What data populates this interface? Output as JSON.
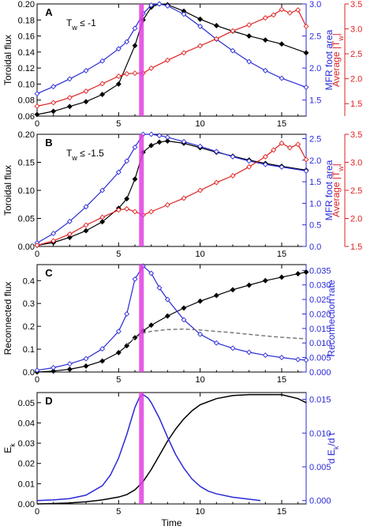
{
  "colors": {
    "black": "#000000",
    "blue": "#2a2ad8",
    "red": "#e02020",
    "magenta": "#e040e0",
    "gray": "#7a7a7a"
  },
  "time_marker": 6.4,
  "chart_data": [
    {
      "type": "line",
      "panel_label": "A",
      "annotation": "T",
      "annotation_sub": "w",
      "annotation_rest": " ≤ -1",
      "xlabel": "",
      "ylabel": "Toroidal flux",
      "ylabel_right": "MFR foot area",
      "ylabel_right2": "Average |T",
      "ylabel_right2_sub": "w",
      "ylabel_right2_end": "|",
      "xlim": [
        0,
        16.5
      ],
      "ylim": [
        0.06,
        0.2
      ],
      "ylim_right": [
        1.25,
        3.0
      ],
      "ylim_right2": [
        1.25,
        3.5
      ],
      "xticks": [
        "0",
        "5",
        "10",
        "15"
      ],
      "yticks": [
        "0.06",
        "0.08",
        "0.10",
        "0.12",
        "0.14",
        "0.16",
        "0.18",
        "0.20"
      ],
      "yticks_right": [
        "1.5",
        "2.0",
        "2.5",
        "3.0"
      ],
      "yticks_right2": [
        "1.5",
        "2.0",
        "2.5",
        "3.0",
        "3.5"
      ],
      "series": [
        {
          "axis": "left",
          "color": "black",
          "marker": "diamond-filled",
          "x": [
            0,
            1,
            2,
            3,
            4,
            5,
            6,
            6.5,
            7,
            7.5,
            8,
            9,
            10,
            11,
            12,
            13,
            14,
            15,
            16.5
          ],
          "y": [
            0.062,
            0.066,
            0.072,
            0.078,
            0.087,
            0.1,
            0.148,
            0.18,
            0.196,
            0.2,
            0.199,
            0.191,
            0.181,
            0.173,
            0.166,
            0.16,
            0.155,
            0.15,
            0.139
          ]
        },
        {
          "axis": "right",
          "color": "blue",
          "marker": "diamond-open",
          "x": [
            0,
            1,
            2,
            3,
            4,
            5,
            5.5,
            6,
            6.5,
            7,
            7.5,
            8,
            9,
            10,
            11,
            12,
            13,
            14,
            15,
            16.5
          ],
          "y": [
            1.6,
            1.71,
            1.83,
            1.96,
            2.11,
            2.3,
            2.41,
            2.62,
            2.85,
            2.98,
            3.0,
            2.97,
            2.84,
            2.65,
            2.45,
            2.27,
            2.1,
            1.96,
            1.84,
            1.7
          ]
        },
        {
          "axis": "right2",
          "color": "red",
          "marker": "diamond-open",
          "x": [
            0,
            1,
            2,
            3,
            4,
            5,
            5.5,
            6,
            6.5,
            7,
            8,
            9,
            10,
            11,
            12,
            13,
            14,
            14.5,
            15,
            15.5,
            16,
            16.5
          ],
          "y": [
            1.45,
            1.52,
            1.62,
            1.75,
            1.9,
            2.05,
            2.1,
            2.11,
            2.11,
            2.21,
            2.37,
            2.52,
            2.66,
            2.8,
            2.96,
            3.08,
            3.22,
            3.28,
            3.39,
            3.32,
            3.38,
            3.05
          ]
        }
      ]
    },
    {
      "type": "line",
      "panel_label": "B",
      "annotation": "T",
      "annotation_sub": "w",
      "annotation_rest": " ≤ -1.5",
      "xlabel": "",
      "ylabel": "Toroidal flux",
      "ylabel_right": "MFR foot area",
      "ylabel_right2": "Average |T",
      "ylabel_right2_sub": "w",
      "ylabel_right2_end": "|",
      "xlim": [
        0,
        16.5
      ],
      "ylim": [
        0,
        0.2
      ],
      "ylim_right": [
        0,
        2.6
      ],
      "ylim_right2": [
        1.5,
        3.5
      ],
      "xticks": [
        "0",
        "5",
        "10",
        "15"
      ],
      "yticks": [
        "0.00",
        "0.05",
        "0.10",
        "0.15",
        "0.20"
      ],
      "yticks_right": [
        "0.0",
        "0.5",
        "1.0",
        "1.5",
        "2.0",
        "2.5"
      ],
      "yticks_right2": [
        "1.5",
        "2.0",
        "2.5",
        "3.0",
        "3.5"
      ],
      "series": [
        {
          "axis": "left",
          "color": "black",
          "marker": "diamond-filled",
          "x": [
            0,
            1,
            2,
            3,
            4,
            5,
            5.5,
            6,
            6.5,
            7,
            7.5,
            8,
            9,
            10,
            11,
            12,
            13,
            14,
            15,
            16.5
          ],
          "y": [
            0.002,
            0.007,
            0.016,
            0.028,
            0.044,
            0.068,
            0.085,
            0.12,
            0.168,
            0.18,
            0.186,
            0.188,
            0.184,
            0.176,
            0.168,
            0.161,
            0.154,
            0.148,
            0.143,
            0.136
          ]
        },
        {
          "axis": "right",
          "color": "blue",
          "marker": "diamond-open",
          "x": [
            0,
            1,
            2,
            3,
            4,
            5,
            5.5,
            6,
            6.5,
            7,
            7.5,
            8,
            9,
            10,
            11,
            12,
            13,
            14,
            15,
            16.5
          ],
          "y": [
            0.08,
            0.3,
            0.58,
            0.92,
            1.3,
            1.72,
            1.98,
            2.3,
            2.6,
            2.6,
            2.57,
            2.53,
            2.43,
            2.32,
            2.2,
            2.08,
            1.98,
            1.9,
            1.84,
            1.75
          ]
        },
        {
          "axis": "right2",
          "color": "red",
          "marker": "diamond-open",
          "x": [
            0,
            1,
            2,
            3,
            4,
            5,
            5.5,
            6,
            6.5,
            7,
            8,
            9,
            10,
            11,
            12,
            13,
            14,
            14.5,
            15,
            15.5,
            16,
            16.5
          ],
          "y": [
            1.52,
            1.6,
            1.72,
            1.88,
            2.02,
            2.15,
            2.17,
            2.12,
            2.06,
            2.12,
            2.24,
            2.36,
            2.5,
            2.64,
            2.76,
            2.92,
            3.1,
            3.22,
            3.34,
            3.26,
            3.32,
            3.05
          ]
        }
      ]
    },
    {
      "type": "line",
      "panel_label": "C",
      "xlabel": "",
      "ylabel": "Reconnected flux",
      "ylabel_right": "Reconnection rate",
      "xlim": [
        0,
        16.5
      ],
      "ylim": [
        0,
        0.47
      ],
      "ylim_right": [
        0,
        0.037
      ],
      "xticks": [
        "0",
        "5",
        "10",
        "15"
      ],
      "yticks": [
        "0.0",
        "0.1",
        "0.2",
        "0.3",
        "0.4"
      ],
      "yticks_right": [
        "0.000",
        "0.005",
        "0.010",
        "0.015",
        "0.020",
        "0.025",
        "0.030",
        "0.035"
      ],
      "series": [
        {
          "axis": "left",
          "color": "black",
          "marker": "diamond-filled",
          "x": [
            0,
            1,
            2,
            3,
            4,
            5,
            5.5,
            6,
            6.5,
            7,
            8,
            9,
            10,
            11,
            12,
            13,
            14,
            15,
            16,
            16.5
          ],
          "y": [
            0.0,
            0.004,
            0.012,
            0.026,
            0.048,
            0.085,
            0.115,
            0.15,
            0.18,
            0.205,
            0.245,
            0.28,
            0.31,
            0.335,
            0.36,
            0.38,
            0.4,
            0.415,
            0.43,
            0.437
          ]
        },
        {
          "axis": "right",
          "color": "blue",
          "marker": "diamond-open",
          "x": [
            0,
            1,
            2,
            3,
            4,
            5,
            5.5,
            6,
            6.5,
            7,
            7.5,
            8,
            9,
            10,
            11,
            12,
            13,
            14,
            15,
            16,
            16.5
          ],
          "y": [
            0.0006,
            0.0015,
            0.0028,
            0.0046,
            0.008,
            0.014,
            0.02,
            0.032,
            0.0365,
            0.034,
            0.029,
            0.025,
            0.018,
            0.013,
            0.01,
            0.0082,
            0.0068,
            0.0058,
            0.005,
            0.0043,
            0.0041
          ]
        },
        {
          "axis": "left",
          "color": "gray",
          "dashed": true,
          "x": [
            5.5,
            6,
            6.5,
            7,
            8,
            9,
            10,
            11,
            12,
            13,
            14,
            15,
            16.5
          ],
          "y": [
            0.12,
            0.15,
            0.17,
            0.178,
            0.186,
            0.188,
            0.184,
            0.178,
            0.172,
            0.165,
            0.158,
            0.152,
            0.145
          ]
        }
      ]
    },
    {
      "type": "line",
      "panel_label": "D",
      "xlabel": "Time",
      "ylabel": "E",
      "ylabel_sub": "k",
      "ylabel_right": "d E",
      "ylabel_right_sub": "k",
      "ylabel_right_end": "/d t",
      "xlim": [
        0,
        16.5
      ],
      "ylim": [
        0,
        0.055
      ],
      "ylim_right": [
        -0.0005,
        0.016
      ],
      "xticks": [
        "0",
        "5",
        "10",
        "15"
      ],
      "yticks": [
        "0.00",
        "0.01",
        "0.02",
        "0.03",
        "0.04",
        "0.05"
      ],
      "yticks_right": [
        "0.000",
        "0.005",
        "0.010",
        "0.015"
      ],
      "series": [
        {
          "axis": "left",
          "color": "black",
          "x": [
            0,
            1,
            2,
            3,
            4,
            5,
            5.5,
            6,
            6.5,
            7,
            7.5,
            8,
            8.5,
            9,
            9.5,
            10,
            11,
            12,
            13,
            14,
            15,
            16,
            16.5
          ],
          "y": [
            0.0,
            0.0002,
            0.0005,
            0.0011,
            0.002,
            0.0034,
            0.0046,
            0.007,
            0.011,
            0.017,
            0.024,
            0.031,
            0.037,
            0.042,
            0.046,
            0.049,
            0.052,
            0.0535,
            0.054,
            0.054,
            0.054,
            0.052,
            0.05
          ]
        },
        {
          "axis": "right",
          "color": "blue",
          "x": [
            0,
            1,
            2,
            3,
            4,
            4.5,
            5,
            5.5,
            6,
            6.3,
            6.5,
            6.8,
            7,
            7.5,
            8,
            8.5,
            9,
            9.5,
            10,
            10.5,
            11,
            12,
            13,
            13.7
          ],
          "y": [
            0.0,
            0.0001,
            0.0003,
            0.0008,
            0.0022,
            0.0038,
            0.0063,
            0.0098,
            0.0138,
            0.0154,
            0.0157,
            0.0152,
            0.0145,
            0.0122,
            0.0094,
            0.0068,
            0.0048,
            0.0032,
            0.0021,
            0.0014,
            0.001,
            0.0005,
            0.0002,
            0.0
          ]
        }
      ]
    }
  ]
}
